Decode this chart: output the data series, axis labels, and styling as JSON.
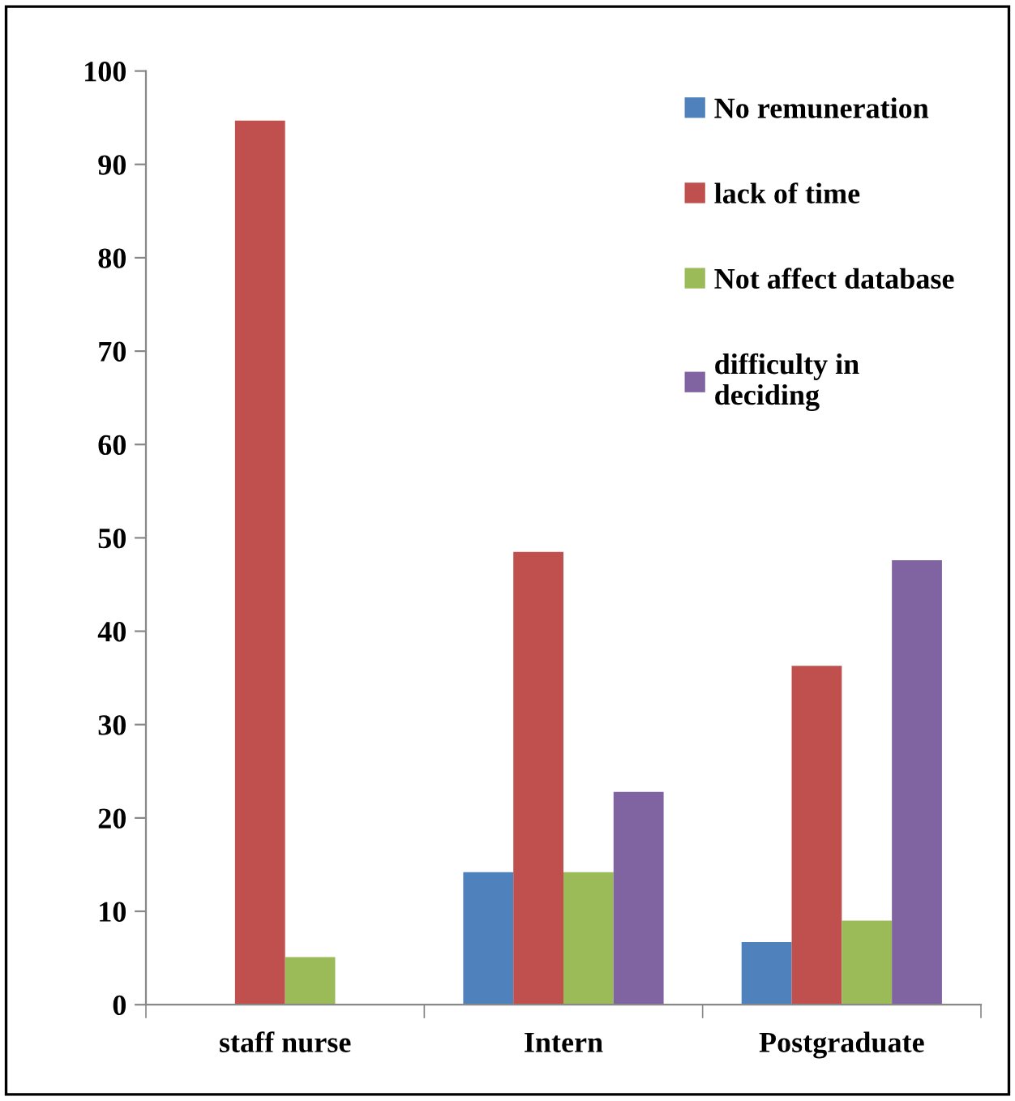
{
  "chart_data": {
    "type": "bar",
    "categories": [
      "staff nurse",
      "Intern",
      "Postgraduate"
    ],
    "series": [
      {
        "name": "No remuneration",
        "color": "#4f81bd",
        "values": [
          0,
          14.2,
          6.7
        ]
      },
      {
        "name": "lack of time",
        "color": "#c0504d",
        "values": [
          94.7,
          48.5,
          36.3
        ]
      },
      {
        "name": "Not affect database",
        "color": "#9bbb59",
        "values": [
          5.1,
          14.2,
          9.0
        ]
      },
      {
        "name": "difficulty in deciding",
        "color": "#8064a2",
        "values": [
          0,
          22.8,
          47.6
        ]
      }
    ],
    "ylim": [
      0,
      100
    ],
    "yticks": [
      0,
      10,
      20,
      30,
      40,
      50,
      60,
      70,
      80,
      90,
      100
    ],
    "grid": false,
    "legend": "top right"
  }
}
